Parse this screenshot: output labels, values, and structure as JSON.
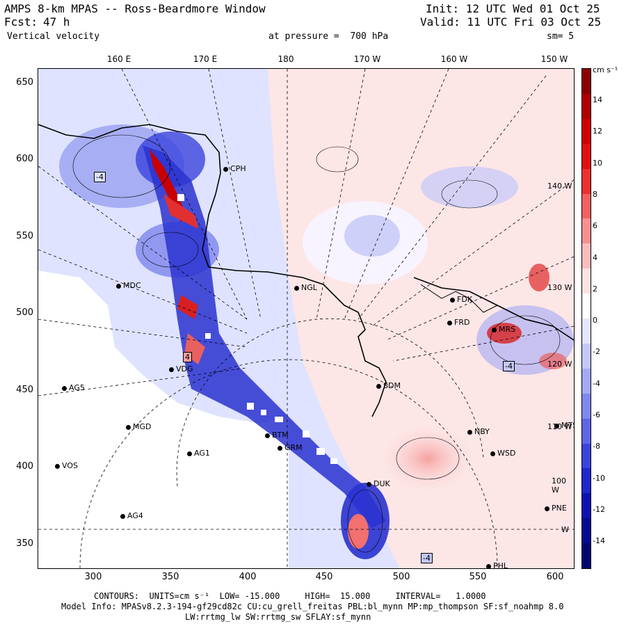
{
  "header": {
    "title": "AMPS 8-km MPAS -- Ross-Beardmore Window",
    "fcst_label": "Fcst:",
    "fcst_value": "47 h",
    "field": "Vertical velocity",
    "init": "Init: 12 UTC Wed 01 Oct 25",
    "valid": "Valid: 11 UTC Fri 03 Oct 25",
    "level": "at pressure =  700 hPa",
    "smoothing": "sm= 5"
  },
  "axes": {
    "y_ticks": [
      "650",
      "600",
      "550",
      "500",
      "450",
      "400",
      "350"
    ],
    "x_ticks": [
      "300",
      "350",
      "400",
      "450",
      "500",
      "550",
      "600"
    ],
    "lon_labels": [
      "160 E",
      "170 E",
      "180",
      "170 W",
      "160 W",
      "150 W"
    ],
    "side_lat_labels": [
      "140 W",
      "130 W",
      "120 W",
      "110 W",
      "100 W",
      "W"
    ]
  },
  "colorbar": {
    "unit": "cm s⁻¹",
    "ticks": [
      "14",
      "12",
      "10",
      "8",
      "6",
      "4",
      "2",
      "0",
      "-2",
      "-4",
      "-6",
      "-8",
      "-10",
      "-12",
      "-14"
    ],
    "colors": [
      "#8b0000",
      "#b00000",
      "#d00000",
      "#e01010",
      "#ee3030",
      "#f46060",
      "#f89090",
      "#fbbcbc",
      "#fde2e2",
      "#ffffff",
      "#e3e6ff",
      "#c3c8fb",
      "#a3a9f5",
      "#8088ee",
      "#5e66e6",
      "#3b44dc",
      "#1f28cc",
      "#0b12b0",
      "#050a90",
      "#000670"
    ]
  },
  "stations": [
    {
      "id": "CPH"
    },
    {
      "id": "MDC"
    },
    {
      "id": "NGL"
    },
    {
      "id": "FDK"
    },
    {
      "id": "FRD"
    },
    {
      "id": "AG5"
    },
    {
      "id": "MGD"
    },
    {
      "id": "AG1"
    },
    {
      "id": "VOS"
    },
    {
      "id": "AG4"
    },
    {
      "id": "SDM"
    },
    {
      "id": "NBY"
    },
    {
      "id": "WSD"
    },
    {
      "id": "MTS"
    },
    {
      "id": "PNE"
    },
    {
      "id": "PHL"
    },
    {
      "id": "GRM"
    },
    {
      "id": "BTM"
    },
    {
      "id": "DUK"
    },
    {
      "id": "VDG"
    },
    {
      "id": "MRS"
    }
  ],
  "box_labels": [
    "-4",
    "4",
    "-4",
    "-4"
  ],
  "footer": {
    "contours": "CONTOURS:  UNITS=cm s⁻¹  LOW= -15.000     HIGH=  15.000     INTERVAL=   1.0000",
    "model_info": "Model Info: MPASv8.2.3-194-gf29cd82c CU:cu_grell_freitas PBL:bl_mynn MP:mp_thompson SF:sf_noahmp 8.0",
    "model_info2": "LW:rrtmg_lw SW:rrtmg_sw SFLAY:sf_mynn"
  }
}
